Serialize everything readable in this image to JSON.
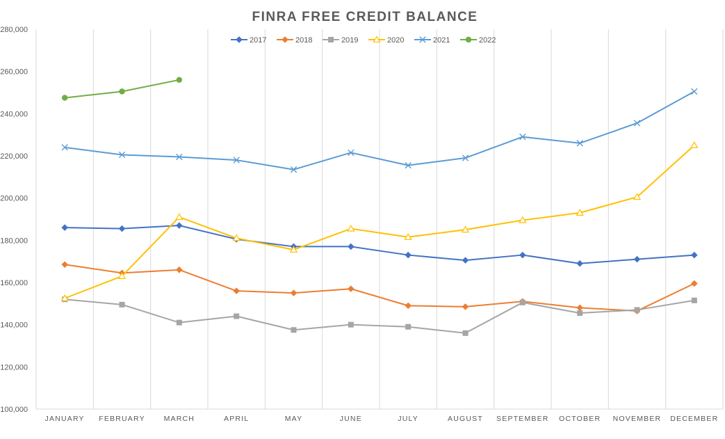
{
  "chart_data": {
    "type": "line",
    "title": "FINRA FREE CREDIT BALANCE",
    "xlabel": "",
    "ylabel": "",
    "ylim": [
      100000,
      280000
    ],
    "yticks": [
      100000,
      120000,
      140000,
      160000,
      180000,
      200000,
      220000,
      240000,
      260000,
      280000
    ],
    "ytick_labels": [
      "100,000",
      "120,000",
      "140,000",
      "160,000",
      "180,000",
      "200,000",
      "220,000",
      "240,000",
      "260,000",
      "280,000"
    ],
    "categories": [
      "JANUARY",
      "FEBRUARY",
      "MARCH",
      "APRIL",
      "MAY",
      "JUNE",
      "JULY",
      "AUGUST",
      "SEPTEMBER",
      "OCTOBER",
      "NOVEMBER",
      "DECEMBER"
    ],
    "grid": "vertical",
    "legend_position": "top",
    "series": [
      {
        "name": "2017",
        "color": "#4472C4",
        "marker": "diamond",
        "values": [
          186000,
          185500,
          187000,
          180500,
          177000,
          177000,
          173000,
          170500,
          173000,
          169000,
          171000,
          173000
        ]
      },
      {
        "name": "2018",
        "color": "#ED7D31",
        "marker": "diamond",
        "values": [
          168500,
          164500,
          166000,
          156000,
          155000,
          157000,
          149000,
          148500,
          151000,
          148000,
          146500,
          159500
        ]
      },
      {
        "name": "2019",
        "color": "#A5A5A5",
        "marker": "square",
        "values": [
          152000,
          149500,
          141000,
          144000,
          137500,
          140000,
          139000,
          136000,
          150500,
          145500,
          147000,
          151500
        ]
      },
      {
        "name": "2020",
        "color": "#FFC000",
        "marker": "triangle",
        "values": [
          152500,
          163000,
          191000,
          181000,
          175500,
          185500,
          181500,
          185000,
          189500,
          193000,
          200500,
          225000
        ]
      },
      {
        "name": "2021",
        "color": "#5B9BD5",
        "marker": "x",
        "values": [
          224000,
          220500,
          219500,
          218000,
          213500,
          221500,
          215500,
          219000,
          229000,
          226000,
          235500,
          250500
        ]
      },
      {
        "name": "2022",
        "color": "#70AD47",
        "marker": "circle",
        "values": [
          247500,
          250500,
          256000,
          null,
          null,
          null,
          null,
          null,
          null,
          null,
          null,
          null
        ]
      }
    ]
  }
}
